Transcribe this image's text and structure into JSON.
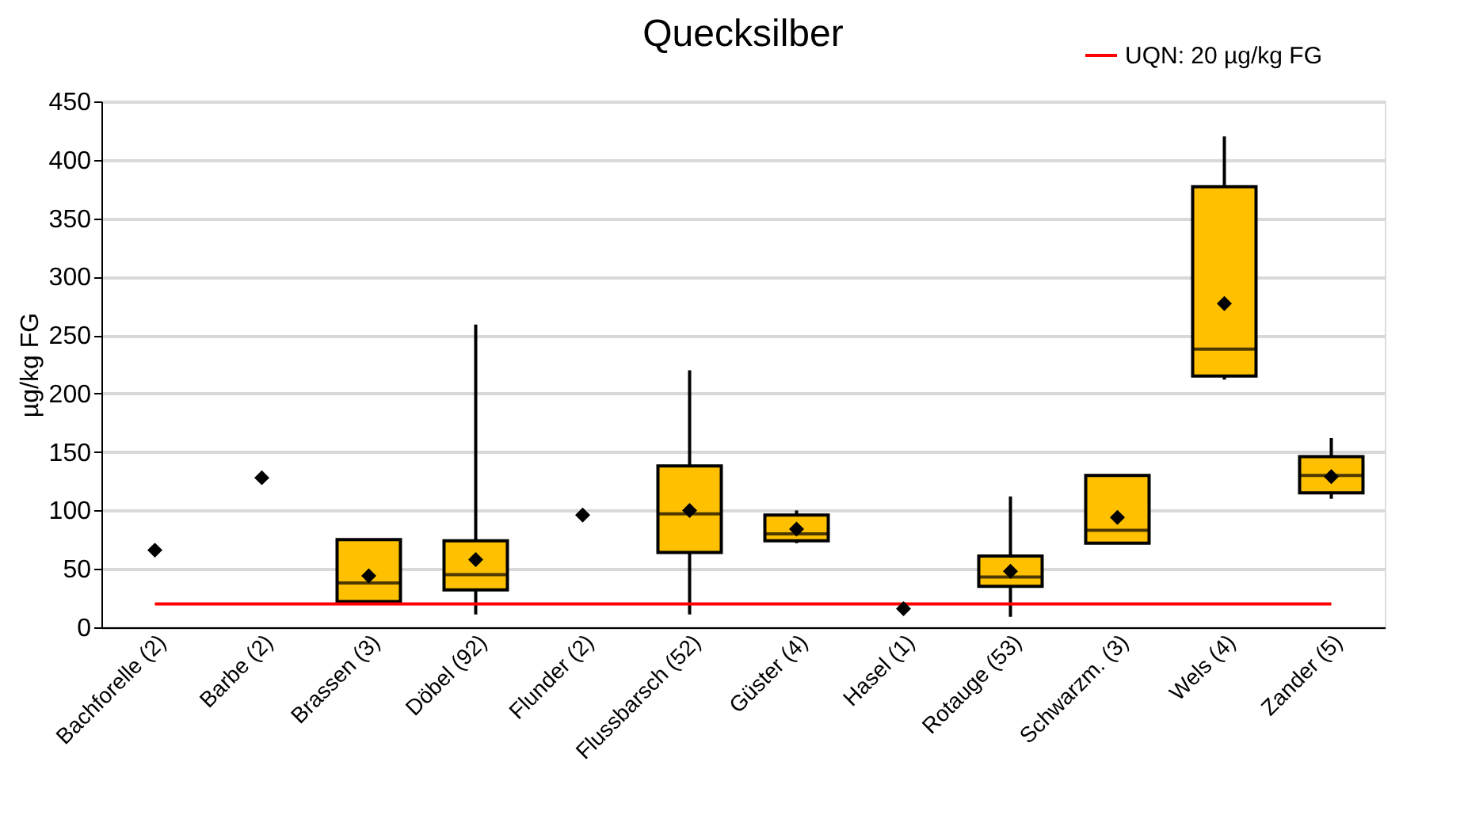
{
  "chart_data": {
    "type": "box",
    "title": "Quecksilber",
    "ylabel": "µg/kg FG",
    "categories": [
      "Bachforelle (2)",
      "Barbe (2)",
      "Brassen (3)",
      "Döbel (92)",
      "Flunder (2)",
      "Flussbarsch (52)",
      "Güster (4)",
      "Hasel (1)",
      "Rotauge (53)",
      "Schwarzm. (3)",
      "Wels (4)",
      "Zander (5)"
    ],
    "color": "#ffc000",
    "boxes": [
      null,
      null,
      {
        "low": 22,
        "q1": 22,
        "median": 38,
        "q3": 75,
        "high": 75
      },
      {
        "low": 11,
        "q1": 32,
        "median": 45,
        "q3": 74,
        "high": 259
      },
      null,
      {
        "low": 11,
        "q1": 64,
        "median": 97,
        "q3": 138,
        "high": 220
      },
      {
        "low": 72,
        "q1": 74,
        "median": 80,
        "q3": 96,
        "high": 100
      },
      null,
      {
        "low": 9,
        "q1": 35,
        "median": 43,
        "q3": 61,
        "high": 112
      },
      {
        "low": 72,
        "q1": 72,
        "median": 83,
        "q3": 130,
        "high": 130
      },
      {
        "low": 212,
        "q1": 215,
        "median": 238,
        "q3": 377,
        "high": 420
      },
      {
        "low": 110,
        "q1": 115,
        "median": 130,
        "q3": 146,
        "high": 162
      }
    ],
    "series": [
      {
        "type": "scatter",
        "color": "#000000",
        "marker": "diamond",
        "values": [
          66,
          128,
          44,
          58,
          96,
          100,
          84,
          16,
          48,
          94,
          277,
          129
        ]
      }
    ],
    "ylim": [
      0,
      450
    ],
    "yticks": [
      0,
      50,
      100,
      150,
      200,
      250,
      300,
      350,
      400,
      450
    ],
    "grid": "y",
    "ref_lines": [
      {
        "axis": "y",
        "value": 20,
        "label": "UQN: 20 µg/kg FG",
        "color": "#ff0000",
        "line_style": "solid"
      }
    ],
    "legend": "top right"
  }
}
